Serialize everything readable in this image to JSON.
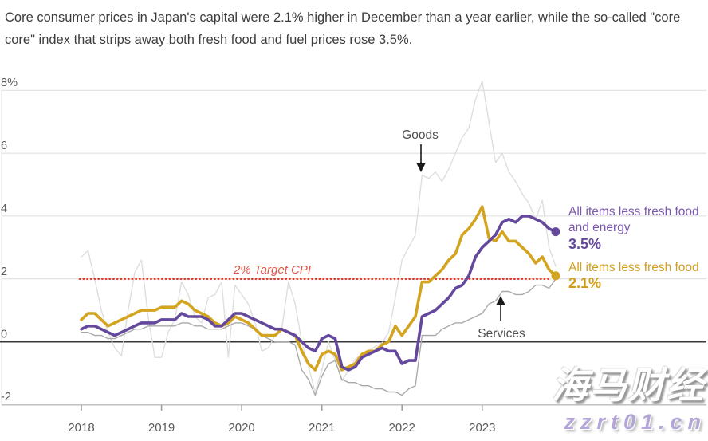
{
  "header": {
    "text": "Core consumer prices in Japan's capital were 2.1% higher in December than a year earlier, while the so-called \"core core\" index that strips away both fresh food and fuel prices rose 3.5%."
  },
  "axis": {
    "y_labels": [
      "8%",
      "6",
      "4",
      "2",
      "0",
      "-2"
    ],
    "x_labels": [
      "2018",
      "2019",
      "2020",
      "2021",
      "2022",
      "2023"
    ]
  },
  "annotations": {
    "goods_label": "Goods",
    "services_label": "Services",
    "target_label": "2% Target CPI"
  },
  "legend": {
    "core_core": {
      "line1": "All items less fresh food",
      "line2": "and energy",
      "value": "3.5%",
      "color": "#63489c"
    },
    "core": {
      "line1": "All items less fresh food",
      "value": "2.1%",
      "color": "#d4a41f"
    }
  },
  "watermark": {
    "brand": "海马财经",
    "site": "zzrt01.cn"
  },
  "chart_data": {
    "type": "line",
    "title": "Tokyo consumer price inflation, year-on-year %",
    "x_unit": "month",
    "x_start": "2018-01",
    "x_end": "2023-12",
    "x_tick_labels": [
      "2018",
      "2019",
      "2020",
      "2021",
      "2022",
      "2023"
    ],
    "y_ticks": [
      8,
      6,
      4,
      2,
      0,
      -2
    ],
    "ylim": [
      -2.6,
      8.6
    ],
    "grid": true,
    "target_line": {
      "value": 2,
      "label": "2% Target CPI",
      "color": "#e23b33"
    },
    "series": [
      {
        "name": "Goods",
        "slug": "goods",
        "layer": "back",
        "color": "#dedede",
        "width": 1.4,
        "end_dot": false,
        "values": [
          2.7,
          2.9,
          2.0,
          1.0,
          0.3,
          -0.2,
          -0.45,
          1.0,
          2.2,
          2.6,
          0.8,
          -0.5,
          -0.5,
          0.3,
          0.7,
          1.9,
          1.5,
          0.8,
          0.6,
          1.4,
          1.5,
          1.9,
          -0.5,
          1.8,
          1.5,
          1.2,
          0.6,
          -0.3,
          -0.2,
          0.2,
          0.4,
          1.9,
          1.2,
          0.0,
          -0.8,
          -1.6,
          -0.9,
          0.0,
          -0.6,
          -1.25,
          -0.9,
          -0.55,
          -0.4,
          -0.3,
          -0.15,
          -0.05,
          0.3,
          1.4,
          2.6,
          3.0,
          3.4,
          5.3,
          5.2,
          5.4,
          5.1,
          5.5,
          6.0,
          6.5,
          6.8,
          7.7,
          8.3,
          7.0,
          5.7,
          6.0,
          5.4,
          5.1,
          4.7,
          4.4,
          3.9,
          4.5,
          3.0,
          2.4
        ]
      },
      {
        "name": "Services",
        "slug": "services",
        "layer": "back",
        "color": "#a9a9a9",
        "width": 1.4,
        "end_dot": false,
        "values": [
          0.3,
          0.3,
          0.2,
          0.2,
          0.1,
          0.1,
          0.2,
          0.3,
          0.4,
          0.4,
          0.5,
          0.5,
          0.5,
          0.5,
          0.5,
          0.6,
          0.6,
          0.5,
          0.5,
          0.4,
          0.4,
          0.4,
          0.5,
          0.6,
          0.6,
          0.5,
          0.4,
          0.2,
          0.1,
          0.0,
          0.0,
          0.0,
          -0.1,
          -0.9,
          -1.2,
          -1.7,
          -1.1,
          -0.7,
          -0.6,
          -1.2,
          -1.3,
          -1.3,
          -1.4,
          -1.4,
          -1.5,
          -1.5,
          -1.6,
          -1.6,
          -1.7,
          -1.5,
          -1.4,
          0.2,
          0.2,
          0.2,
          0.4,
          0.5,
          0.6,
          0.6,
          0.7,
          0.8,
          0.9,
          1.2,
          1.3,
          1.6,
          1.6,
          1.5,
          1.5,
          1.6,
          1.8,
          1.8,
          1.7,
          2.0
        ]
      },
      {
        "name": "All items less fresh food",
        "slug": "all-items-less-fresh-food",
        "layer": "front",
        "color": "#d4a41f",
        "width": 3.6,
        "end_dot": true,
        "end_value_label": "2.1%",
        "values": [
          0.7,
          0.9,
          0.9,
          0.7,
          0.5,
          0.6,
          0.7,
          0.8,
          0.9,
          1.0,
          1.0,
          1.0,
          1.1,
          1.1,
          1.1,
          1.3,
          1.2,
          1.0,
          0.9,
          0.8,
          0.6,
          0.5,
          0.6,
          0.8,
          0.7,
          0.6,
          0.4,
          0.2,
          0.2,
          0.2,
          0.4,
          0.3,
          0.2,
          -0.3,
          -0.7,
          -0.9,
          -0.4,
          -0.3,
          -0.4,
          -0.9,
          -0.8,
          -0.7,
          -0.4,
          -0.3,
          -0.3,
          -0.1,
          0.0,
          0.5,
          0.2,
          0.5,
          0.8,
          1.9,
          1.9,
          2.1,
          2.3,
          2.6,
          2.8,
          3.4,
          3.6,
          3.9,
          4.3,
          3.3,
          3.2,
          3.5,
          3.2,
          3.2,
          3.0,
          2.8,
          2.5,
          2.7,
          2.3,
          2.1
        ]
      },
      {
        "name": "All items less fresh food and energy",
        "slug": "all-items-less-fresh-food-and-energy",
        "layer": "front",
        "color": "#63489c",
        "width": 3.6,
        "end_dot": true,
        "end_value_label": "3.5%",
        "values": [
          0.4,
          0.5,
          0.5,
          0.4,
          0.3,
          0.2,
          0.3,
          0.4,
          0.5,
          0.6,
          0.6,
          0.6,
          0.7,
          0.7,
          0.7,
          0.9,
          0.8,
          0.8,
          0.8,
          0.7,
          0.5,
          0.5,
          0.7,
          0.9,
          0.9,
          0.8,
          0.7,
          0.6,
          0.5,
          0.4,
          0.4,
          0.3,
          0.2,
          0.0,
          -0.2,
          -0.3,
          0.1,
          0.2,
          0.1,
          -0.8,
          -0.9,
          -0.8,
          -0.5,
          -0.4,
          -0.3,
          -0.2,
          -0.3,
          -0.3,
          -0.7,
          -0.6,
          -0.6,
          0.8,
          0.9,
          1.0,
          1.2,
          1.4,
          1.7,
          1.8,
          2.1,
          2.7,
          3.0,
          3.2,
          3.4,
          3.8,
          3.9,
          3.8,
          4.0,
          4.0,
          3.9,
          3.8,
          3.6,
          3.5
        ]
      }
    ]
  }
}
